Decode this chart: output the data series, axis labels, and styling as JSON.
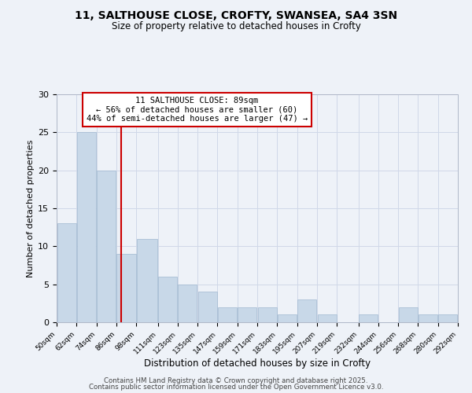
{
  "title": "11, SALTHOUSE CLOSE, CROFTY, SWANSEA, SA4 3SN",
  "subtitle": "Size of property relative to detached houses in Crofty",
  "xlabel": "Distribution of detached houses by size in Crofty",
  "ylabel": "Number of detached properties",
  "bar_color": "#c8d8e8",
  "bar_edgecolor": "#a0b8d0",
  "bar_left_edges": [
    50,
    62,
    74,
    86,
    98,
    111,
    123,
    135,
    147,
    159,
    171,
    183,
    195,
    207,
    219,
    232,
    244,
    256,
    268,
    280
  ],
  "bar_widths": [
    12,
    12,
    12,
    12,
    13,
    12,
    12,
    12,
    12,
    12,
    12,
    12,
    12,
    12,
    13,
    12,
    12,
    12,
    12,
    12
  ],
  "bar_heights": [
    13,
    25,
    20,
    9,
    11,
    6,
    5,
    4,
    2,
    2,
    2,
    1,
    3,
    1,
    0,
    1,
    0,
    2,
    1,
    1
  ],
  "tick_labels": [
    "50sqm",
    "62sqm",
    "74sqm",
    "86sqm",
    "98sqm",
    "111sqm",
    "123sqm",
    "135sqm",
    "147sqm",
    "159sqm",
    "171sqm",
    "183sqm",
    "195sqm",
    "207sqm",
    "219sqm",
    "232sqm",
    "244sqm",
    "256sqm",
    "268sqm",
    "280sqm",
    "292sqm"
  ],
  "vline_x": 89,
  "vline_color": "#cc0000",
  "annotation_line1": "11 SALTHOUSE CLOSE: 89sqm",
  "annotation_line2": "← 56% of detached houses are smaller (60)",
  "annotation_line3": "44% of semi-detached houses are larger (47) →",
  "annotation_box_color": "#ffffff",
  "annotation_box_edgecolor": "#cc0000",
  "ylim": [
    0,
    30
  ],
  "yticks": [
    0,
    5,
    10,
    15,
    20,
    25,
    30
  ],
  "grid_color": "#d0d8e8",
  "background_color": "#eef2f8",
  "footer_line1": "Contains HM Land Registry data © Crown copyright and database right 2025.",
  "footer_line2": "Contains public sector information licensed under the Open Government Licence v3.0."
}
